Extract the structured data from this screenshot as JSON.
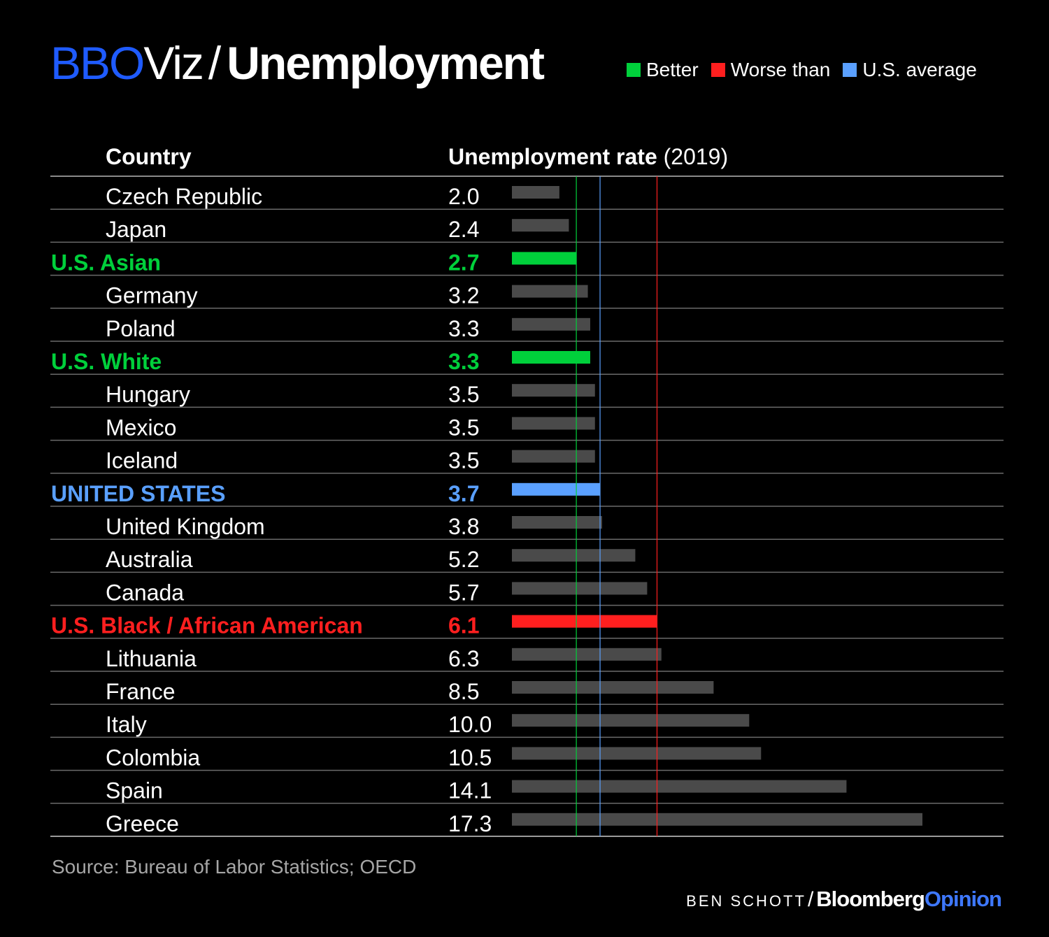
{
  "header": {
    "brand_part1": "BBO",
    "brand_part2": "Viz",
    "separator": "/",
    "title": "Unemployment"
  },
  "legend": [
    {
      "label": "Better",
      "color": "#00d03b"
    },
    {
      "label": "Worse than",
      "color": "#ff1f1f"
    },
    {
      "label": "U.S. average",
      "color": "#5aa0ff"
    }
  ],
  "columns": {
    "country": "Country",
    "rate_bold": "Unemployment rate",
    "rate_year": "(2019)"
  },
  "footer": {
    "source": "Source: Bureau of Labor Statistics; OECD",
    "author": "BEN SCHOTT",
    "publisher_part1": "Bloomberg",
    "publisher_part2": "Opinion"
  },
  "colors": {
    "background": "#000000",
    "default_bar": "#4a4a4a",
    "better": "#00d03b",
    "worse": "#ff1f1f",
    "average": "#5aa0ff",
    "row_line": "#6a6a6a"
  },
  "chart_data": {
    "type": "bar",
    "orientation": "horizontal",
    "title": "Unemployment",
    "xlabel": "Unemployment rate (2019)",
    "ylabel": "Country",
    "xlim": [
      0,
      17.3
    ],
    "reference_lines": [
      {
        "value": 2.7,
        "category": "better"
      },
      {
        "value": 3.7,
        "category": "average"
      },
      {
        "value": 6.1,
        "category": "worse"
      }
    ],
    "categories": [
      "Czech Republic",
      "Japan",
      "U.S. Asian",
      "Germany",
      "Poland",
      "U.S. White",
      "Hungary",
      "Mexico",
      "Iceland",
      "UNITED STATES",
      "United Kingdom",
      "Australia",
      "Canada",
      "U.S. Black / African American",
      "Lithuania",
      "France",
      "Italy",
      "Colombia",
      "Spain",
      "Greece"
    ],
    "values": [
      2.0,
      2.4,
      2.7,
      3.2,
      3.3,
      3.3,
      3.5,
      3.5,
      3.5,
      3.7,
      3.8,
      5.2,
      5.7,
      6.1,
      6.3,
      8.5,
      10.0,
      10.5,
      14.1,
      17.3
    ],
    "value_labels": [
      "2.0",
      "2.4",
      "2.7",
      "3.2",
      "3.3",
      "3.3",
      "3.5",
      "3.5",
      "3.5",
      "3.7",
      "3.8",
      "5.2",
      "5.7",
      "6.1",
      "6.3",
      "8.5",
      "10.0",
      "10.5",
      "14.1",
      "17.3"
    ],
    "highlight": [
      "none",
      "none",
      "better",
      "none",
      "none",
      "better",
      "none",
      "none",
      "none",
      "average",
      "none",
      "none",
      "none",
      "worse",
      "none",
      "none",
      "none",
      "none",
      "none",
      "none"
    ]
  }
}
